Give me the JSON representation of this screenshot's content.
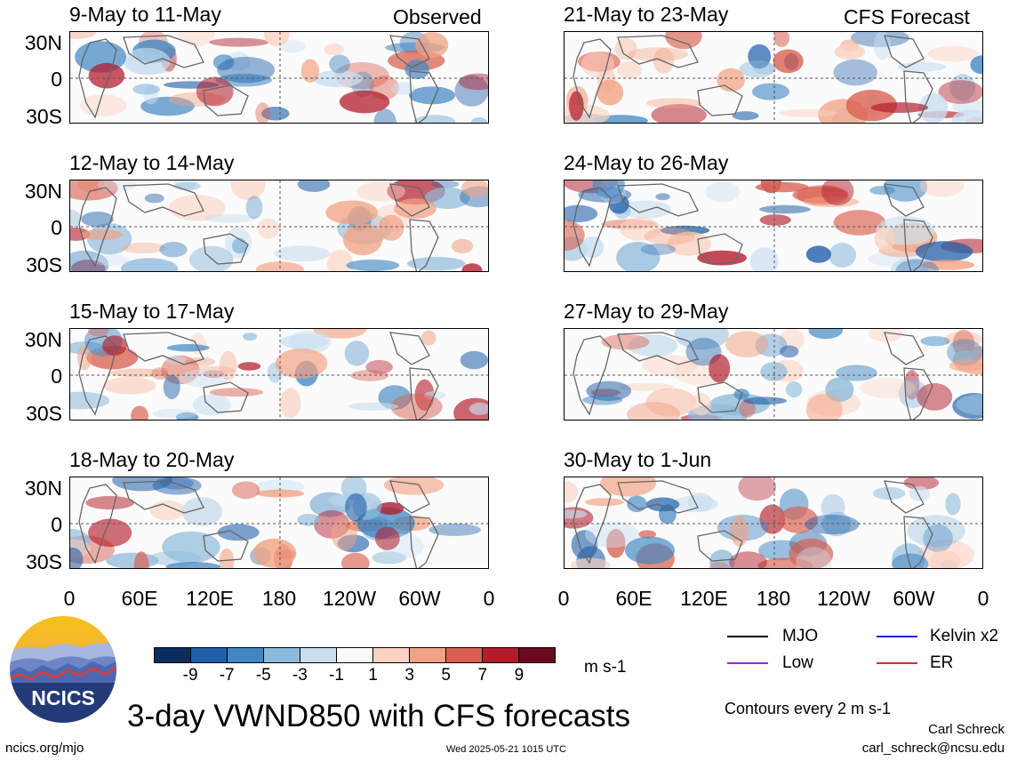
{
  "panels": {
    "left_header": "Observed",
    "right_header": "CFS Forecast",
    "observed": [
      {
        "title": "9-May to 11-May"
      },
      {
        "title": "12-May to 14-May"
      },
      {
        "title": "15-May to 17-May"
      },
      {
        "title": "18-May to 20-May"
      }
    ],
    "forecast": [
      {
        "title": "21-May to 23-May"
      },
      {
        "title": "24-May to 26-May"
      },
      {
        "title": "27-May to 29-May"
      },
      {
        "title": "30-May to 1-Jun"
      }
    ],
    "lat_labels": [
      "30N",
      "0",
      "30S"
    ],
    "lon_labels": [
      "0",
      "60E",
      "120E",
      "180",
      "120W",
      "60W",
      "0"
    ]
  },
  "colorbar": {
    "ticks": [
      "-9",
      "-7",
      "-5",
      "-3",
      "-1",
      "1",
      "3",
      "5",
      "7",
      "9"
    ],
    "units": "m s-1",
    "colors": [
      "#0b2d5e",
      "#1f5fa9",
      "#3f86c2",
      "#8dbadb",
      "#c9dff0",
      "#f9f9f9",
      "#fbd2c0",
      "#f2a283",
      "#d9604f",
      "#b31c2b",
      "#6b0a1e"
    ]
  },
  "legend": {
    "items": [
      {
        "label": "MJO",
        "color": "#000000"
      },
      {
        "label": "Kelvin x2",
        "color": "#1d22d6"
      },
      {
        "label": "Low",
        "color": "#a020f0"
      },
      {
        "label": "ER",
        "color": "#dd2a20"
      }
    ],
    "contours_note": "Contours every 2 m s-1"
  },
  "main_title": "3-day VWND850 with CFS forecasts",
  "logo_text": "NCICS",
  "footer": {
    "left": "ncics.org/mjo",
    "center": "Wed 2025-05-21 1015 UTC",
    "author": "Carl Schreck",
    "email": "carl_schreck@ncsu.edu"
  }
}
